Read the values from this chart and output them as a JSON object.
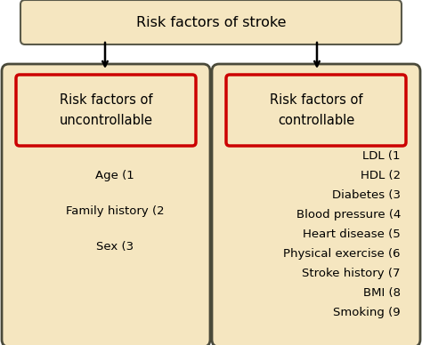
{
  "title": "Risk factors of stroke",
  "title_box_color": "#f5e6c0",
  "title_box_edge": "#5a5a4a",
  "bg_color": "#ffffff",
  "panel_color": "#f5e6c0",
  "panel_edge": "#4a4a3a",
  "header_box_edge": "#cc0000",
  "header_box_color": "#f5e6c0",
  "left_header": "Risk factors of\nuncontrollable",
  "right_header": "Risk factors of\ncontrollable",
  "left_items": [
    "Age (1",
    "Family history (2",
    "Sex (3"
  ],
  "right_items": [
    "LDL (1",
    "HDL (2",
    "Diabetes (3",
    "Blood pressure (4",
    "Heart disease (5",
    "Physical exercise (6",
    "Stroke history (7",
    "BMI (8",
    "Smoking (9"
  ],
  "font_size_title": 11.5,
  "font_size_header": 10.5,
  "font_size_items": 9.5
}
